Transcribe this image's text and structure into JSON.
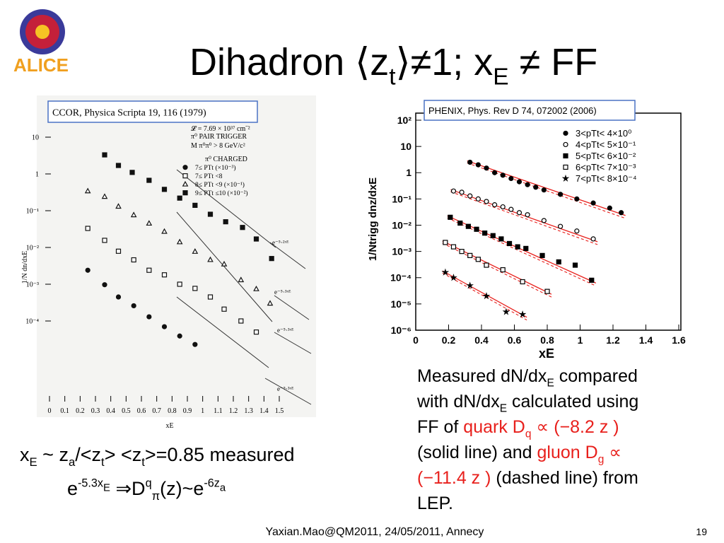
{
  "logo": "ALICE",
  "title": [
    {
      "t": "Dihadron ⟨z"
    },
    {
      "t": "t",
      "s": "sub"
    },
    {
      "t": "⟩≠1; x"
    },
    {
      "t": "E",
      "s": "sub"
    },
    {
      "t": " ≠ FF"
    }
  ],
  "left_text": [
    [
      {
        "t": "x"
      },
      {
        "t": "E",
        "s": "sub"
      },
      {
        "t": " ~ z"
      },
      {
        "t": "a",
        "s": "sub"
      },
      {
        "t": "/<z"
      },
      {
        "t": "t",
        "s": "sub"
      },
      {
        "t": "> <z"
      },
      {
        "t": "t",
        "s": "sub"
      },
      {
        "t": ">=0.85 measured"
      }
    ],
    [
      {
        "t": "e"
      },
      {
        "t": "-5.3x",
        "s": "sup"
      },
      {
        "t": "E",
        "s": "supsub"
      },
      {
        "t": " ⇒D"
      },
      {
        "t": "q",
        "s": "sup"
      },
      {
        "t": "π",
        "s": "sub"
      },
      {
        "t": "(z)~e"
      },
      {
        "t": "-6z",
        "s": "sup"
      },
      {
        "t": "a",
        "s": "supsub"
      }
    ]
  ],
  "right_text": [
    [
      {
        "t": "Measured dN/dx"
      },
      {
        "t": "E",
        "s": "sub"
      },
      {
        "t": " compared"
      }
    ],
    [
      {
        "t": "with dN/dx"
      },
      {
        "t": "E",
        "s": "sub"
      },
      {
        "t": " calculated using"
      }
    ],
    [
      {
        "t": "FF of "
      },
      {
        "t": "quark D",
        "s": "red"
      },
      {
        "t": "q",
        "s": "red sub"
      },
      {
        "t": " ∝ (−8.2 z )",
        "s": "red"
      }
    ],
    [
      {
        "t": "(solid line) and "
      },
      {
        "t": "gluon D",
        "s": "red"
      },
      {
        "t": "g",
        "s": "red sub"
      },
      {
        "t": " ∝",
        "s": "red"
      }
    ],
    [
      {
        "t": "(−11.4 z )",
        "s": "red"
      },
      {
        "t": " (dashed line) from"
      }
    ],
    [
      {
        "t": "LEP."
      }
    ]
  ],
  "footer": "Yaxian.Mao@QM2011, 24/05/2011, Annecy",
  "page_number": "19",
  "chart_data": [
    {
      "type": "scatter",
      "source": "CCOR, Physica Scripta 19, 116 (1979)",
      "y_label": "1/N dn/dxE",
      "x_label": "xE",
      "log_y": true,
      "annotations": [
        "𝓛 = 7.69 × 10³⁷ cm⁻²",
        "π⁰ PAIR TRIGGER",
        "M π⁰π⁰ > 8 GeV/c²",
        "π⁰ CHARGED",
        "e⁻⁵·²ˣᴱ",
        "e⁻⁵·³ˣᴱ",
        "e⁻⁵·³ˣᴱ",
        "e⁻⁵·³ˣᴱ"
      ],
      "xlim": [
        0,
        1.5
      ],
      "xticks": [
        0,
        0.1,
        0.2,
        0.3,
        0.4,
        0.5,
        0.6,
        0.7,
        0.8,
        0.9,
        1,
        1.1,
        1.2,
        1.3,
        1.4,
        1.5
      ],
      "ylim": [
        1e-06,
        100
      ],
      "yticks": [
        {
          "value": 10,
          "label": "10"
        },
        {
          "value": 1,
          "label": "1"
        },
        {
          "value": 0.1,
          "label": "10⁻¹"
        },
        {
          "value": 0.01,
          "label": "10⁻²"
        },
        {
          "value": 0.001,
          "label": "10⁻³"
        },
        {
          "value": 0.0001,
          "label": "10⁻⁴"
        }
      ],
      "series": [
        {
          "name": "7≤ PTt (×10⁻³)",
          "marker": "circle-filled",
          "color": "#111",
          "x": [
            0.25,
            0.36,
            0.45,
            0.55,
            0.65,
            0.75,
            0.85,
            0.95
          ],
          "values": [
            0.0024,
            0.00097,
            0.00045,
            0.00026,
            0.00013,
            7e-05,
            3.9e-05,
            2.3e-05
          ]
        },
        {
          "name": "7≤ PTt <8",
          "marker": "square-open",
          "color": "#111",
          "x": [
            0.25,
            0.36,
            0.45,
            0.55,
            0.65,
            0.75,
            0.85,
            0.95,
            1.05,
            1.14,
            1.25,
            1.35
          ],
          "values": [
            0.033,
            0.0156,
            0.0079,
            0.0046,
            0.0024,
            0.0018,
            0.001,
            0.00077,
            0.00045,
            0.00021,
            0.0001,
            5e-05
          ]
        },
        {
          "name": "8≤ PTt <9 (×10⁻¹)",
          "marker": "triangle-open",
          "color": "#111",
          "x": [
            0.25,
            0.36,
            0.45,
            0.55,
            0.65,
            0.75,
            0.85,
            0.95,
            1.05,
            1.14,
            1.25,
            1.35,
            1.44
          ],
          "values": [
            0.34,
            0.24,
            0.13,
            0.076,
            0.045,
            0.027,
            0.014,
            0.0077,
            0.0046,
            0.0035,
            0.0013,
            0.00074,
            0.0003
          ]
        },
        {
          "name": "9≤ PTt ≤10 (×10⁻²)",
          "marker": "square-filled",
          "color": "#111",
          "x": [
            0.36,
            0.45,
            0.54,
            0.65,
            0.75,
            0.85,
            0.95,
            1.05,
            1.15,
            1.26,
            1.35,
            1.45
          ],
          "values": [
            3.3,
            1.7,
            1.1,
            0.67,
            0.38,
            0.22,
            0.14,
            0.08,
            0.05,
            0.035,
            0.017,
            0.005
          ]
        }
      ]
    },
    {
      "type": "scatter",
      "source": "PHENIX, Phys. Rev D 74, 072002 (2006)",
      "y_label": "1/Ntrigg dnz/dxE",
      "x_label": "xE",
      "log_y": true,
      "xlim": [
        0,
        1.6
      ],
      "xticks": [
        0,
        0.2,
        0.4,
        0.6,
        0.8,
        1,
        1.2,
        1.4,
        1.6
      ],
      "ylim": [
        1e-06,
        100
      ],
      "yticks": [
        {
          "value": 100,
          "label": "10²"
        },
        {
          "value": 10,
          "label": "10"
        },
        {
          "value": 1,
          "label": "1"
        },
        {
          "value": 0.1,
          "label": "10⁻¹"
        },
        {
          "value": 0.01,
          "label": "10⁻²"
        },
        {
          "value": 0.001,
          "label": "10⁻³"
        },
        {
          "value": 0.0001,
          "label": "10⁻⁴"
        },
        {
          "value": 1e-05,
          "label": "10⁻⁵"
        },
        {
          "value": 1e-06,
          "label": "10⁻⁶"
        }
      ],
      "series": [
        {
          "name": "3<pTt< 4×10⁰",
          "marker": "circle-filled",
          "color": "#000",
          "x": [
            0.33,
            0.38,
            0.43,
            0.48,
            0.53,
            0.58,
            0.63,
            0.68,
            0.73,
            0.78,
            0.88,
            0.98,
            1.08,
            1.18,
            1.25
          ],
          "values": [
            2.5,
            2.0,
            1.5,
            1.0,
            0.8,
            0.6,
            0.45,
            0.35,
            0.28,
            0.22,
            0.15,
            0.1,
            0.07,
            0.045,
            0.03
          ]
        },
        {
          "name": "4<pTt< 5×10⁻¹",
          "marker": "circle-open",
          "color": "#000",
          "x": [
            0.23,
            0.28,
            0.33,
            0.38,
            0.43,
            0.48,
            0.53,
            0.58,
            0.63,
            0.68,
            0.78,
            0.88,
            0.98,
            1.08
          ],
          "values": [
            0.2,
            0.18,
            0.13,
            0.1,
            0.08,
            0.06,
            0.05,
            0.04,
            0.03,
            0.025,
            0.015,
            0.009,
            0.006,
            0.003
          ]
        },
        {
          "name": "5<pTt< 6×10⁻²",
          "marker": "square-filled",
          "color": "#000",
          "x": [
            0.21,
            0.27,
            0.32,
            0.37,
            0.42,
            0.47,
            0.52,
            0.57,
            0.62,
            0.67,
            0.77,
            0.87,
            0.97,
            1.07
          ],
          "values": [
            0.02,
            0.012,
            0.009,
            0.007,
            0.005,
            0.004,
            0.003,
            0.002,
            0.0015,
            0.0013,
            0.0007,
            0.0004,
            0.0003,
            8e-05
          ]
        },
        {
          "name": "6<pTt< 7×10⁻³",
          "marker": "square-open",
          "color": "#000",
          "x": [
            0.18,
            0.23,
            0.28,
            0.33,
            0.38,
            0.43,
            0.53,
            0.65,
            0.8
          ],
          "values": [
            0.0022,
            0.0015,
            0.001,
            0.0007,
            0.0005,
            0.0003,
            0.0002,
            7e-05,
            3e-05
          ]
        },
        {
          "name": "7<pTt< 8×10⁻⁴",
          "marker": "star",
          "color": "#000",
          "x": [
            0.18,
            0.23,
            0.33,
            0.43,
            0.55,
            0.65
          ],
          "values": [
            0.00016,
            0.0001,
            5e-05,
            2e-05,
            5e-06,
            4e-06
          ]
        }
      ]
    }
  ]
}
